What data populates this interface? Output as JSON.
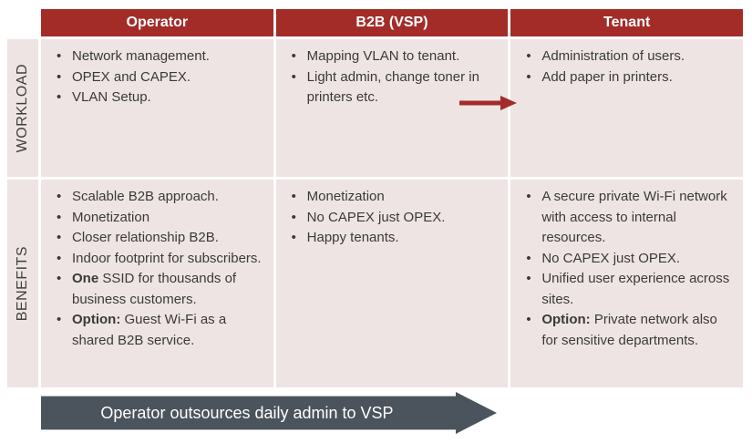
{
  "colors": {
    "header_bg": "#A32C28",
    "header_text": "#FFFFFF",
    "cell_bg": "#EEE4E3",
    "body_text": "#3A3A3A",
    "arrow_red": "#A32C28",
    "banner_bg": "#4B545C",
    "banner_text": "#FFFFFF"
  },
  "columns": [
    "Operator",
    "B2B (VSP)",
    "Tenant"
  ],
  "rows": [
    {
      "label": "WORKLOAD",
      "cells": [
        {
          "items": [
            {
              "text": "Network management."
            },
            {
              "text": "OPEX and CAPEX."
            },
            {
              "text": "VLAN Setup."
            }
          ]
        },
        {
          "items": [
            {
              "text": "Mapping VLAN to tenant."
            },
            {
              "text": "Light admin, change toner in printers etc."
            }
          ]
        },
        {
          "items": [
            {
              "text": "Administration of users."
            },
            {
              "text": "Add paper in printers."
            }
          ]
        }
      ]
    },
    {
      "label": "BENEFITS",
      "cells": [
        {
          "items": [
            {
              "text": "Scalable B2B approach."
            },
            {
              "text": "Monetization"
            },
            {
              "text": "Closer relationship B2B."
            },
            {
              "text": "Indoor footprint for subscribers."
            },
            {
              "bold": "One",
              "text": " SSID for thousands of business customers."
            },
            {
              "bold": "Option:",
              "text": " Guest Wi-Fi as a shared B2B service."
            }
          ]
        },
        {
          "items": [
            {
              "text": "Monetization"
            },
            {
              "text": "No CAPEX just OPEX."
            },
            {
              "text": "Happy tenants."
            }
          ]
        },
        {
          "items": [
            {
              "text": "A secure private Wi-Fi network with access to internal resources."
            },
            {
              "text": "No CAPEX just OPEX."
            },
            {
              "text": "Unified user experience across sites."
            },
            {
              "bold": "Option:",
              "text": " Private network also for sensitive departments."
            }
          ]
        }
      ]
    }
  ],
  "banner": {
    "text": "Operator outsources daily admin to VSP"
  }
}
